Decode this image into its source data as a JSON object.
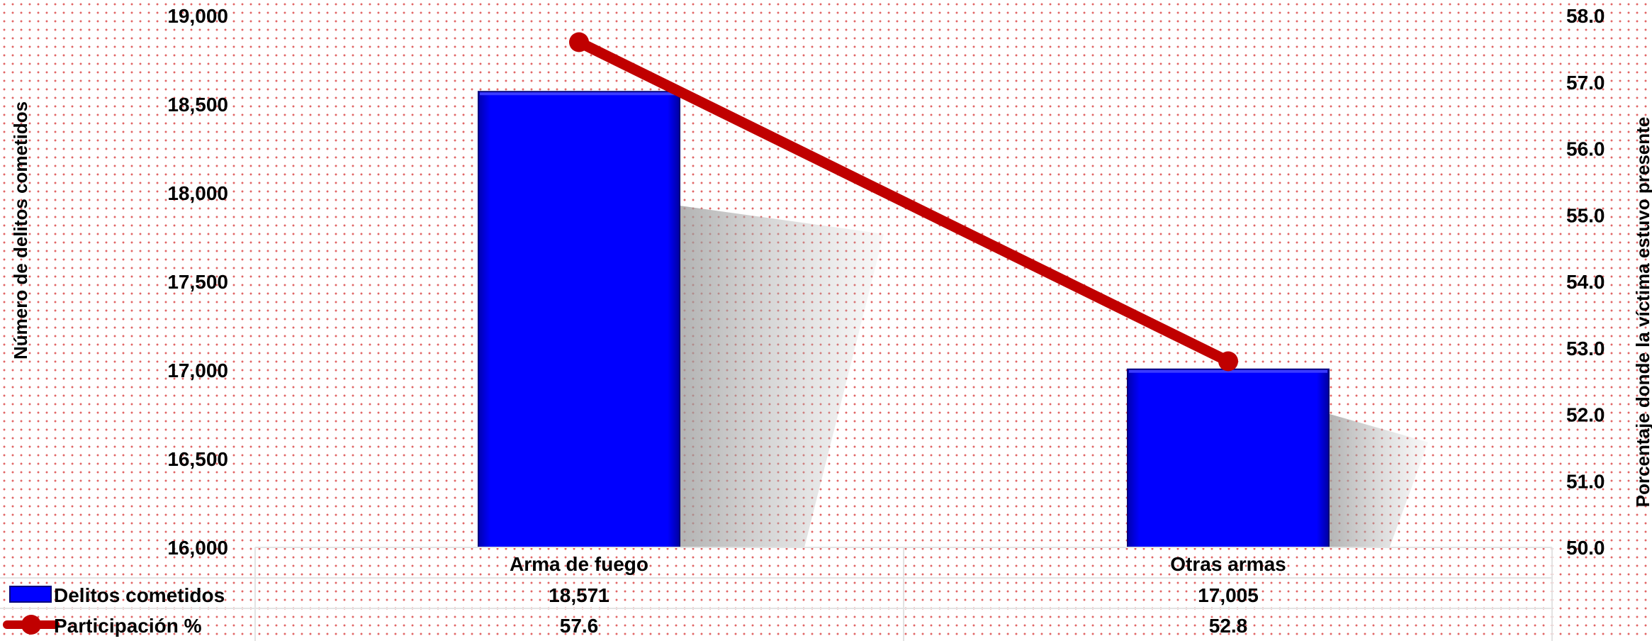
{
  "chart_data": {
    "type": "bar",
    "categories": [
      "Arma de fuego",
      "Otras armas"
    ],
    "series": [
      {
        "name": "Delitos cometidos",
        "type": "bar",
        "axis": "left",
        "color": "#0000ff",
        "values": [
          18571,
          17005
        ],
        "labels": [
          "18,571",
          "17,005"
        ]
      },
      {
        "name": "Participación %",
        "type": "line",
        "axis": "right",
        "color": "#c00000",
        "values": [
          57.6,
          52.8
        ],
        "labels": [
          "57.6",
          "52.8"
        ]
      }
    ],
    "ylabel": "Número de delitos cometidos",
    "y2label": "Porcentaje donde la víctima estuvo presente",
    "ylim": [
      16000,
      19000
    ],
    "y2lim": [
      50.0,
      58.0
    ],
    "yticks": [
      "16,000",
      "16,500",
      "17,000",
      "17,500",
      "18,000",
      "18,500",
      "19,000"
    ],
    "y2ticks": [
      "50.0",
      "51.0",
      "52.0",
      "53.0",
      "54.0",
      "55.0",
      "56.0",
      "57.0",
      "58.0"
    ],
    "grid": false,
    "legend": "data-table-left"
  }
}
